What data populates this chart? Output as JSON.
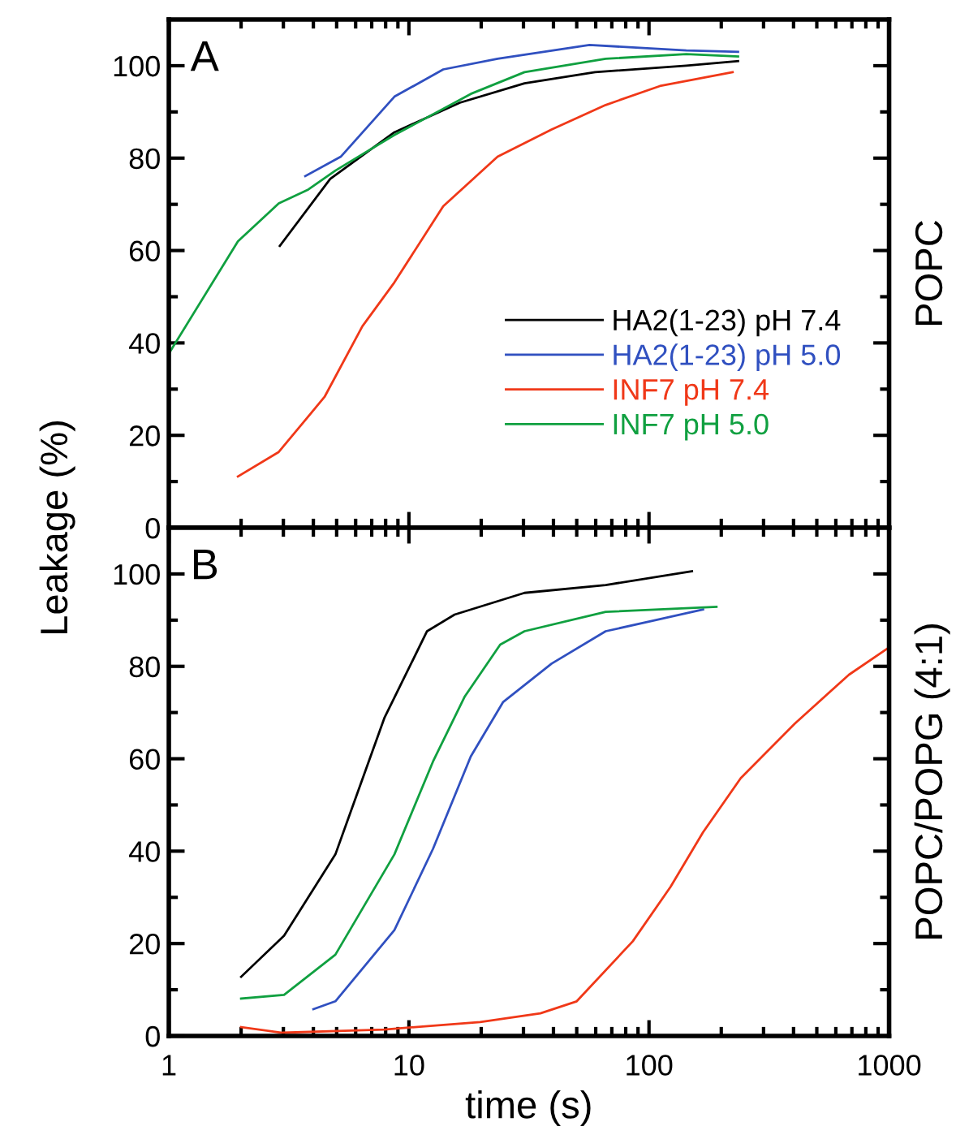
{
  "chart_data": [
    {
      "type": "line",
      "ylabel": "Leakage (%)",
      "y2label": "POPC",
      "annotations": [
        "A"
      ],
      "log": "x",
      "xlim": [
        1,
        1000
      ],
      "xticks": [
        1,
        10,
        100,
        1000
      ],
      "ylim": [
        0,
        110
      ],
      "yticks": [
        0,
        {
          "value": 10,
          "label": null
        },
        20,
        {
          "value": 30,
          "label": null
        },
        40,
        {
          "value": 50,
          "label": null
        },
        60,
        {
          "value": 70,
          "label": null
        },
        80,
        {
          "value": 90,
          "label": null
        },
        100
      ],
      "tick_labels": "y",
      "grid": false,
      "legend": "lower right",
      "marker": "none",
      "line_style": "solid",
      "series": [
        {
          "name": "HA2(1-23) pH 7.4",
          "color": "#000000",
          "x": [
            2.9,
            4.7,
            8.7,
            16.3,
            30.3,
            59.6,
            143,
            235
          ],
          "values": [
            61,
            75.5,
            85.6,
            92,
            96.2,
            98.6,
            100,
            101
          ]
        },
        {
          "name": "HA2(1-23) pH 5.0",
          "color": "#3050c0",
          "x": [
            3.7,
            5.2,
            8.7,
            13.9,
            23.4,
            56.5,
            143,
            235
          ],
          "values": [
            76.1,
            80.3,
            93.3,
            99.2,
            101.5,
            104.5,
            103.3,
            103
          ]
        },
        {
          "name": "INF7 pH 7.4",
          "color": "#f03818",
          "x": [
            1.94,
            2.87,
            4.45,
            6.4,
            8.7,
            13.9,
            23.4,
            39.3,
            66,
            111,
            223
          ],
          "values": [
            11.1,
            16.4,
            28.3,
            43.6,
            53.1,
            69.6,
            80.3,
            86.2,
            91.5,
            95.6,
            98.6
          ]
        },
        {
          "name": "INF7 pH 5.0",
          "color": "#10a040",
          "x": [
            1,
            1.94,
            2.87,
            3.81,
            4.94,
            8.7,
            18.1,
            30.3,
            66,
            143,
            235
          ],
          "values": [
            37.7,
            62,
            70.2,
            73.2,
            77.3,
            85,
            93.9,
            98.6,
            101.5,
            102.5,
            102
          ]
        }
      ]
    },
    {
      "type": "line",
      "xlabel": "time (s)",
      "y2label": "POPC/POPG (4:1)",
      "annotations": [
        "B"
      ],
      "log": "x",
      "xlim": [
        1,
        1000
      ],
      "xticks": [
        1,
        10,
        100,
        1000
      ],
      "ylim": [
        0,
        110
      ],
      "yticks": [
        0,
        {
          "value": 10,
          "label": null
        },
        20,
        {
          "value": 30,
          "label": null
        },
        40,
        {
          "value": 50,
          "label": null
        },
        60,
        {
          "value": 70,
          "label": null
        },
        80,
        {
          "value": 90,
          "label": null
        },
        100
      ],
      "grid": false,
      "marker": "none",
      "line_style": "solid",
      "series": [
        {
          "color": "#000000",
          "x": [
            2.0,
            3.02,
            4.94,
            7.9,
            11.9,
            15.5,
            30.3,
            66,
            151
          ],
          "values": [
            12.8,
            21.7,
            39.3,
            68.8,
            87.6,
            91.2,
            95.9,
            97.6,
            100.6
          ]
        },
        {
          "color": "#3050c0",
          "x": [
            4.0,
            4.94,
            8.7,
            12.6,
            18.1,
            24.7,
            39.3,
            66,
            168
          ],
          "values": [
            5.8,
            7.5,
            22.9,
            40.5,
            60.5,
            72.3,
            80.6,
            87.6,
            92.3
          ]
        },
        {
          "color": "#f03818",
          "x": [
            2.0,
            2.97,
            7.9,
            19.8,
            35.3,
            50,
            85.6,
            123,
            168,
            241,
            405,
            681,
            1000
          ],
          "values": [
            1.9,
            0.7,
            1.4,
            3.0,
            4.9,
            7.5,
            20.5,
            32.3,
            44.1,
            55.8,
            67.6,
            78.2,
            84.1
          ]
        },
        {
          "color": "#10a040",
          "x": [
            2.0,
            3.02,
            4.94,
            8.7,
            12.6,
            17.1,
            24,
            30.3,
            66,
            191
          ],
          "values": [
            8.1,
            8.9,
            17.6,
            39.3,
            59.4,
            73.5,
            84.7,
            87.6,
            91.8,
            92.9
          ]
        }
      ]
    }
  ]
}
